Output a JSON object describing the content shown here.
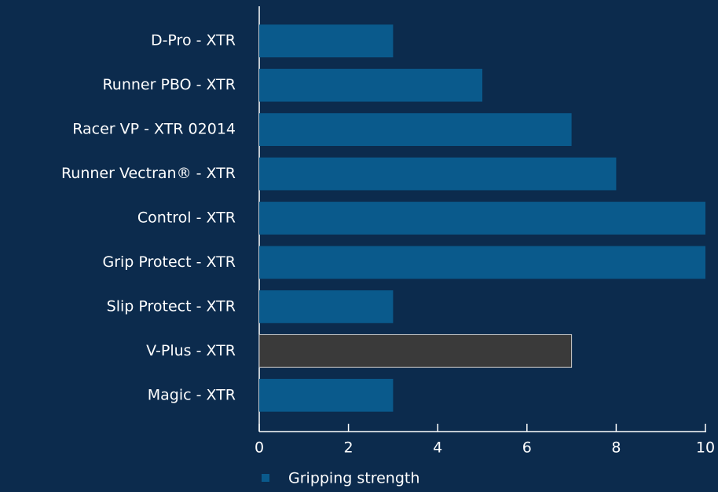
{
  "chart_data": {
    "type": "barh",
    "categories": [
      "D-Pro - XTR",
      "Runner PBO - XTR",
      "Racer VP - XTR 02014",
      "Runner Vectran® - XTR",
      "Control - XTR",
      "Grip Protect - XTR",
      "Slip Protect - XTR",
      "V-Plus - XTR",
      "Magic - XTR"
    ],
    "series": [
      {
        "name": "Gripping strength",
        "color": "#0a5a8c",
        "colors": [
          "#0a5a8c",
          "#0a5a8c",
          "#0a5a8c",
          "#0a5a8c",
          "#0a5a8c",
          "#0a5a8c",
          "#0a5a8c",
          "#3a3a3a",
          "#0a5a8c"
        ],
        "values": [
          3,
          5,
          7,
          8,
          10,
          10,
          3,
          7,
          3
        ]
      }
    ],
    "xlim": [
      0,
      10
    ],
    "xticks": [
      0,
      2,
      4,
      6,
      8,
      10
    ],
    "grid": false
  }
}
